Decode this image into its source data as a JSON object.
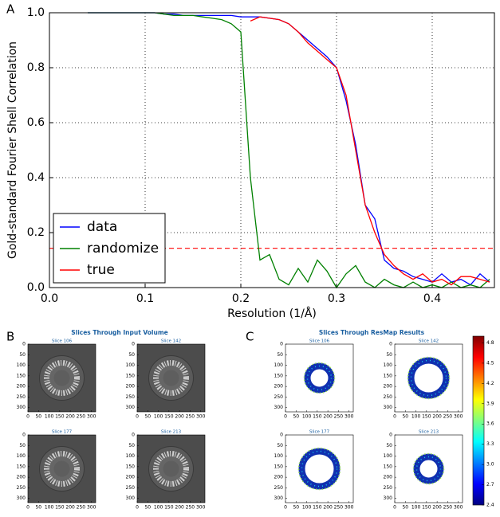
{
  "chart_data": [
    {
      "type": "line",
      "panel_label": "A",
      "xlabel": "Resolution (1/Å)",
      "ylabel": "Gold-standard Fourier Shell Correlation",
      "x": [
        0.04,
        0.05,
        0.06,
        0.07,
        0.08,
        0.09,
        0.1,
        0.11,
        0.12,
        0.13,
        0.14,
        0.15,
        0.16,
        0.17,
        0.18,
        0.19,
        0.2,
        0.21,
        0.22,
        0.23,
        0.24,
        0.25,
        0.26,
        0.27,
        0.28,
        0.29,
        0.3,
        0.31,
        0.32,
        0.33,
        0.34,
        0.35,
        0.36,
        0.37,
        0.38,
        0.39,
        0.4,
        0.41,
        0.42,
        0.43,
        0.44,
        0.45,
        0.46
      ],
      "series": [
        {
          "name": "data",
          "color": "#0000ff",
          "values": [
            1.0,
            1.0,
            1.0,
            1.0,
            1.0,
            1.0,
            1.0,
            1.0,
            0.995,
            0.995,
            0.99,
            0.99,
            0.99,
            0.99,
            0.99,
            0.99,
            0.985,
            0.985,
            0.985,
            0.98,
            0.975,
            0.96,
            0.93,
            0.9,
            0.87,
            0.84,
            0.8,
            0.68,
            0.52,
            0.3,
            0.25,
            0.1,
            0.07,
            0.06,
            0.04,
            0.03,
            0.02,
            0.05,
            0.02,
            0.03,
            0.01,
            0.05,
            0.02
          ]
        },
        {
          "name": "randomize",
          "color": "#008000",
          "values": [
            1.0,
            1.0,
            1.0,
            1.0,
            1.0,
            1.0,
            1.0,
            1.0,
            0.995,
            0.99,
            0.99,
            0.99,
            0.985,
            0.98,
            0.975,
            0.96,
            0.93,
            0.4,
            0.1,
            0.12,
            0.03,
            0.01,
            0.07,
            0.02,
            0.1,
            0.06,
            0.0,
            0.05,
            0.08,
            0.02,
            0.0,
            0.03,
            0.01,
            0.0,
            0.02,
            0.0,
            0.01,
            0.0,
            0.02,
            0.0,
            0.01,
            0.0,
            0.03
          ]
        },
        {
          "name": "true",
          "color": "#ff0000",
          "values": [
            null,
            null,
            null,
            null,
            null,
            null,
            null,
            null,
            null,
            null,
            null,
            null,
            null,
            null,
            null,
            null,
            null,
            0.97,
            0.985,
            0.98,
            0.975,
            0.96,
            0.93,
            0.89,
            0.86,
            0.83,
            0.8,
            0.7,
            0.5,
            0.3,
            0.2,
            0.12,
            0.08,
            0.05,
            0.03,
            0.05,
            0.02,
            0.03,
            0.01,
            0.04,
            0.04,
            0.03,
            0.02
          ]
        }
      ],
      "xlim": [
        0,
        0.465
      ],
      "ylim": [
        0,
        1
      ],
      "xticks": [
        {
          "value": 0,
          "label": "0.0"
        },
        0.1,
        0.2,
        0.3,
        0.4
      ],
      "yticks": [
        {
          "value": 0,
          "label": "0.0"
        },
        0.2,
        0.4,
        0.6,
        0.8,
        {
          "value": 1,
          "label": "1.0"
        }
      ],
      "grid": true,
      "legend": "lower left",
      "threshold": 0.143,
      "threshold_color": "#ff0000"
    },
    {
      "type": "image",
      "panel_label": "B",
      "title": "Slices Through Input Volume",
      "subplot_titles": [
        "Slice 106",
        "Slice 142",
        "Slice 177",
        "Slice 213"
      ],
      "xlim": [
        0,
        320
      ],
      "ylim": [
        0,
        320
      ],
      "xticks": [
        0,
        50,
        100,
        150,
        200,
        250,
        300
      ],
      "yticks": [
        0,
        50,
        100,
        150,
        200,
        250,
        300
      ],
      "colormap": "gray"
    },
    {
      "type": "image",
      "panel_label": "C",
      "title": "Slices Through ResMap Results",
      "subplot_titles": [
        "Slice 106",
        "Slice 142",
        "Slice 177",
        "Slice 213"
      ],
      "xlim": [
        0,
        320
      ],
      "ylim": [
        0,
        320
      ],
      "xticks": [
        0,
        50,
        100,
        150,
        200,
        250,
        300
      ],
      "yticks": [
        0,
        50,
        100,
        150,
        200,
        250,
        300
      ],
      "colormap": "jet",
      "clim": [
        2.4,
        4.9
      ],
      "cticks": [
        2.4,
        2.7,
        {
          "value": 3,
          "label": "3.0"
        },
        3.3,
        3.6,
        3.9,
        4.2,
        4.5,
        4.8
      ]
    }
  ]
}
